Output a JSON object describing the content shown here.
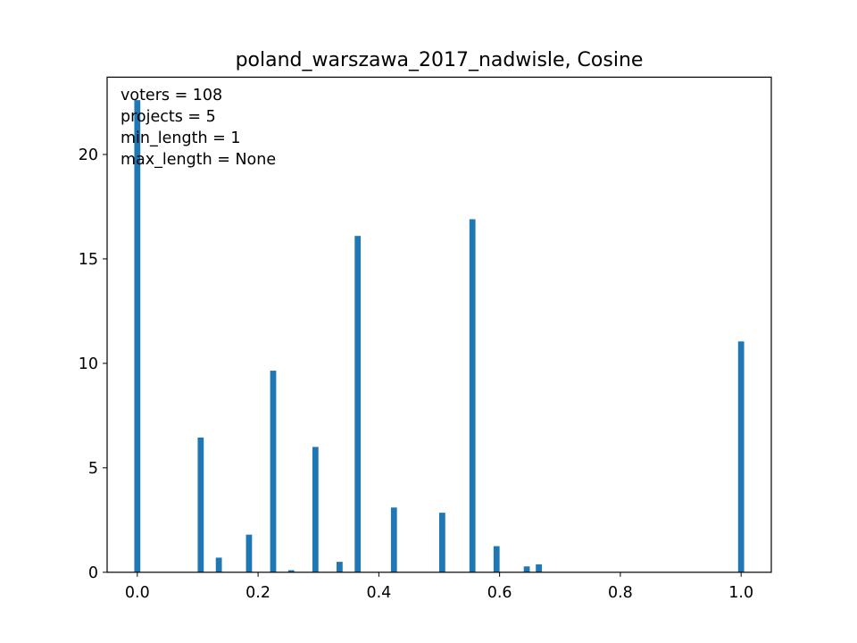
{
  "chart_data": {
    "type": "bar",
    "title": "poland_warszawa_2017_nadwisle, Cosine",
    "xlabel": "",
    "ylabel": "",
    "xlim": [
      -0.05,
      1.05
    ],
    "ylim": [
      0,
      23.7
    ],
    "bar_width": 0.01,
    "bar_color": "#1f77b4",
    "x_ticks": [
      "0.0",
      "0.2",
      "0.4",
      "0.6",
      "0.8",
      "1.0"
    ],
    "y_ticks": [
      "0",
      "5",
      "10",
      "15",
      "20"
    ],
    "annotations": [
      "voters = 108",
      "projects = 5",
      "min_length = 1",
      "max_length = None"
    ],
    "bars": [
      {
        "x": 0.0,
        "y": 22.6
      },
      {
        "x": 0.105,
        "y": 6.45
      },
      {
        "x": 0.135,
        "y": 0.7
      },
      {
        "x": 0.185,
        "y": 1.8
      },
      {
        "x": 0.225,
        "y": 9.65
      },
      {
        "x": 0.255,
        "y": 0.1
      },
      {
        "x": 0.295,
        "y": 6.0
      },
      {
        "x": 0.335,
        "y": 0.5
      },
      {
        "x": 0.365,
        "y": 16.1
      },
      {
        "x": 0.425,
        "y": 3.1
      },
      {
        "x": 0.505,
        "y": 2.85
      },
      {
        "x": 0.555,
        "y": 16.9
      },
      {
        "x": 0.595,
        "y": 1.25
      },
      {
        "x": 0.645,
        "y": 0.28
      },
      {
        "x": 0.665,
        "y": 0.38
      },
      {
        "x": 1.0,
        "y": 11.05
      }
    ]
  }
}
